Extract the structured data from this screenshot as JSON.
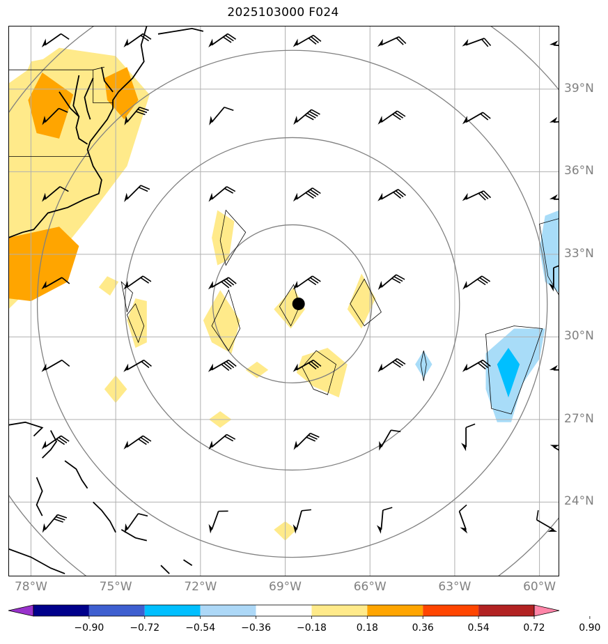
{
  "title": "2025103000 F024",
  "map": {
    "lon_range": [
      -78.8,
      -59.3
    ],
    "lat_range": [
      21.3,
      41.3
    ],
    "lon_ticks": [
      -78,
      -75,
      -72,
      -69,
      -66,
      -63,
      -60
    ],
    "lon_labels": [
      "78°W",
      "75°W",
      "72°W",
      "69°W",
      "66°W",
      "63°W",
      "60°W"
    ],
    "lat_ticks": [
      24,
      27,
      30,
      33,
      36,
      39
    ],
    "lat_labels": [
      "24°N",
      "27°N",
      "30°N",
      "33°N",
      "36°N",
      "39°N"
    ],
    "storm_center": {
      "lon": -68.75,
      "lat": 31.2
    },
    "range_rings_deg": [
      2.9,
      6.1,
      9.3,
      12.5
    ],
    "colors": {
      "grid": "#b0b0b0",
      "rings": "#808080",
      "coast": "#000000",
      "pos_low": "#ffea8a",
      "pos_mid": "#ffa500",
      "neg_low": "#a8dcf8",
      "neg_mid": "#00bfff"
    }
  },
  "colorbar": {
    "ticks": [
      -0.9,
      -0.72,
      -0.54,
      -0.36,
      -0.18,
      0.18,
      0.36,
      0.54,
      0.72,
      0.9
    ],
    "tick_labels": [
      "−0.90",
      "−0.72",
      "−0.54",
      "−0.36",
      "−0.18",
      "0.18",
      "0.36",
      "0.54",
      "0.72",
      "0.90"
    ],
    "colors": [
      "#9932cc",
      "#00008b",
      "#3e5fd0",
      "#00bfff",
      "#add8f7",
      "#ffffff",
      "#ffea8a",
      "#ffa500",
      "#ff4500",
      "#b22222",
      "#ff85a8"
    ]
  }
}
